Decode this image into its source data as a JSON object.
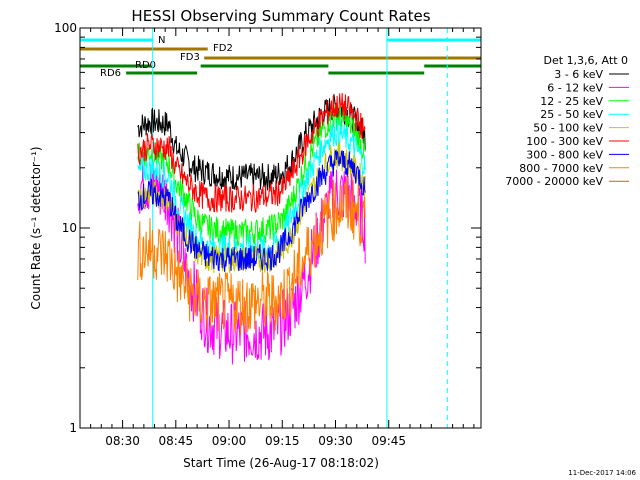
{
  "chart_data": {
    "type": "line",
    "title": "HESSI Observing Summary Count Rates",
    "xlabel": "Start Time (26-Aug-17 08:18:02)",
    "ylabel": "Count Rate (s⁻¹ detector⁻¹)",
    "ylog": true,
    "ylim": [
      1,
      100
    ],
    "xlim_minutes": [
      0,
      113
    ],
    "x_unit": "minutes after 08:18:02",
    "yticks": [
      {
        "value": 1,
        "label": "1"
      },
      {
        "value": 10,
        "label": "10"
      },
      {
        "value": 100,
        "label": "100"
      }
    ],
    "xticks": [
      {
        "value": 12,
        "label": "08:30"
      },
      {
        "value": 27,
        "label": "08:45"
      },
      {
        "value": 42,
        "label": "09:00"
      },
      {
        "value": 57,
        "label": "09:15"
      },
      {
        "value": 72,
        "label": "09:30"
      },
      {
        "value": 87,
        "label": "09:45"
      }
    ],
    "legend_header": "Det 1,3,6, Att 0",
    "legend_placement": "top-right",
    "grid": false,
    "series": [
      {
        "name": "3 - 6 keV",
        "color": "#000000",
        "points": [
          [
            16.3,
            32
          ],
          [
            20,
            34
          ],
          [
            25,
            33
          ],
          [
            27,
            25
          ],
          [
            29,
            23
          ],
          [
            32,
            20
          ],
          [
            36,
            19
          ],
          [
            42,
            18
          ],
          [
            48,
            18
          ],
          [
            54,
            18
          ],
          [
            57,
            19
          ],
          [
            60,
            22
          ],
          [
            64,
            30
          ],
          [
            68,
            37
          ],
          [
            71,
            40
          ],
          [
            73,
            40
          ],
          [
            75,
            38
          ],
          [
            77,
            35
          ],
          [
            79,
            32
          ],
          [
            80.5,
            28
          ]
        ]
      },
      {
        "name": "6 - 12 keV",
        "color": "#ff00ff",
        "points": [
          [
            16.3,
            16
          ],
          [
            18,
            17
          ],
          [
            22,
            16
          ],
          [
            25,
            14
          ],
          [
            27,
            10
          ],
          [
            30,
            6
          ],
          [
            33,
            4.4
          ],
          [
            36,
            3.4
          ],
          [
            42,
            3
          ],
          [
            48,
            3
          ],
          [
            54,
            3
          ],
          [
            56,
            3.2
          ],
          [
            60,
            4
          ],
          [
            64,
            6
          ],
          [
            67,
            9
          ],
          [
            70,
            13
          ],
          [
            72,
            15
          ],
          [
            74,
            15
          ],
          [
            76,
            14
          ],
          [
            78,
            13
          ],
          [
            80,
            11
          ],
          [
            80.5,
            9
          ]
        ]
      },
      {
        "name": "12 - 25 keV",
        "color": "#00ff00",
        "points": [
          [
            16.3,
            23
          ],
          [
            20,
            24
          ],
          [
            25,
            21
          ],
          [
            27,
            17
          ],
          [
            30,
            14
          ],
          [
            33,
            11
          ],
          [
            36,
            10
          ],
          [
            42,
            9.5
          ],
          [
            48,
            9.5
          ],
          [
            54,
            10
          ],
          [
            57,
            11
          ],
          [
            60,
            14
          ],
          [
            64,
            22
          ],
          [
            68,
            30
          ],
          [
            71,
            36
          ],
          [
            73,
            36
          ],
          [
            75,
            34
          ],
          [
            77,
            31
          ],
          [
            79,
            27
          ],
          [
            80.5,
            23
          ]
        ]
      },
      {
        "name": "25 - 50 keV",
        "color": "#00ffff",
        "points": [
          [
            16.3,
            19
          ],
          [
            20,
            20
          ],
          [
            25,
            18
          ],
          [
            27,
            14
          ],
          [
            30,
            11
          ],
          [
            33,
            8.8
          ],
          [
            36,
            8
          ],
          [
            42,
            8
          ],
          [
            48,
            8
          ],
          [
            54,
            8
          ],
          [
            57,
            9
          ],
          [
            60,
            12
          ],
          [
            64,
            18
          ],
          [
            68,
            25
          ],
          [
            71,
            30
          ],
          [
            73,
            30
          ],
          [
            75,
            28
          ],
          [
            77,
            26
          ],
          [
            79,
            23
          ],
          [
            80.5,
            20
          ]
        ]
      },
      {
        "name": "50 - 100 keV",
        "color": "#c8c800",
        "points": [
          [
            16.3,
            14
          ],
          [
            20,
            15
          ],
          [
            25,
            14
          ],
          [
            27,
            11
          ],
          [
            30,
            9
          ],
          [
            33,
            7.5
          ],
          [
            36,
            7
          ],
          [
            42,
            7
          ],
          [
            48,
            7
          ],
          [
            54,
            7
          ],
          [
            57,
            7.8
          ],
          [
            60,
            9.5
          ],
          [
            64,
            14
          ],
          [
            68,
            19
          ],
          [
            71,
            23
          ],
          [
            73,
            23
          ],
          [
            75,
            22
          ],
          [
            77,
            20
          ],
          [
            79,
            18
          ],
          [
            80.5,
            16
          ]
        ]
      },
      {
        "name": "100 - 300 keV",
        "color": "#ff0000",
        "points": [
          [
            16.3,
            24
          ],
          [
            20,
            26
          ],
          [
            25,
            25
          ],
          [
            27,
            20
          ],
          [
            30,
            17
          ],
          [
            33,
            15
          ],
          [
            36,
            14
          ],
          [
            42,
            14
          ],
          [
            48,
            14
          ],
          [
            54,
            14.5
          ],
          [
            57,
            15.5
          ],
          [
            60,
            19
          ],
          [
            64,
            27
          ],
          [
            68,
            35
          ],
          [
            71,
            40
          ],
          [
            73,
            41
          ],
          [
            75,
            40
          ],
          [
            77,
            37
          ],
          [
            79,
            33
          ],
          [
            80.5,
            29
          ]
        ]
      },
      {
        "name": "300 - 800 keV",
        "color": "#0000ff",
        "points": [
          [
            16.3,
            14
          ],
          [
            20,
            15
          ],
          [
            25,
            14
          ],
          [
            27,
            11
          ],
          [
            30,
            9
          ],
          [
            33,
            7.8
          ],
          [
            36,
            7.2
          ],
          [
            42,
            7
          ],
          [
            48,
            7
          ],
          [
            54,
            7.2
          ],
          [
            57,
            8
          ],
          [
            60,
            10
          ],
          [
            64,
            14
          ],
          [
            68,
            18
          ],
          [
            71,
            21
          ],
          [
            73,
            22
          ],
          [
            75,
            21
          ],
          [
            77,
            20
          ],
          [
            79,
            18
          ],
          [
            80.5,
            15
          ]
        ]
      },
      {
        "name": "800 - 7000 keV",
        "color": "#ff8000",
        "points": [
          [
            16.3,
            7.6
          ],
          [
            20,
            8
          ],
          [
            25,
            7.2
          ],
          [
            27,
            6
          ],
          [
            30,
            5
          ],
          [
            33,
            4.4
          ],
          [
            36,
            4.2
          ],
          [
            42,
            4.2
          ],
          [
            48,
            4.2
          ],
          [
            54,
            4.3
          ],
          [
            57,
            4.5
          ],
          [
            60,
            5.5
          ],
          [
            64,
            7.5
          ],
          [
            68,
            10
          ],
          [
            71,
            12
          ],
          [
            73,
            13
          ],
          [
            75,
            13
          ],
          [
            77,
            12.5
          ],
          [
            79,
            11.5
          ],
          [
            80.5,
            9.5
          ]
        ]
      },
      {
        "name": "7000 - 20000 keV",
        "color": "#a07800",
        "points": []
      }
    ],
    "bars": [
      {
        "label": "N",
        "color": "#00ffff",
        "segments": [
          [
            0,
            20.5
          ],
          [
            86.5,
            113
          ]
        ]
      },
      {
        "label": "FD2",
        "color": "#a07800",
        "segments": [
          [
            0,
            36
          ]
        ]
      },
      {
        "label": "FD3",
        "color": "#a07800",
        "segments": [
          [
            35,
            113
          ]
        ]
      },
      {
        "label": "RD0",
        "color": "#008000",
        "segments": [
          [
            0,
            20
          ],
          [
            34,
            70
          ],
          [
            97,
            113
          ]
        ]
      },
      {
        "label": "RD6",
        "color": "#008000",
        "segments": [
          [
            13,
            33
          ],
          [
            70,
            97
          ]
        ]
      }
    ],
    "eclipse_markers": [
      20.5,
      86.5
    ],
    "saa_markers": [
      0,
      103.5
    ]
  },
  "timestamp": "11-Dec-2017 14:06"
}
